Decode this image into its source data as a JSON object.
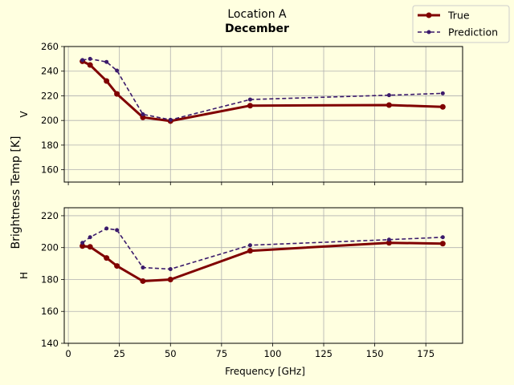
{
  "chart_data": {
    "type": "line",
    "title": "Location A",
    "subtitle": "December",
    "xlabel": "Frequency [GHz]",
    "ylabel": "Brightness Temp [K]",
    "legend": {
      "placement": "top-right",
      "entries": [
        "True",
        "Prediction"
      ]
    },
    "colors": {
      "true": "#800000",
      "prediction": "#3b1a6b",
      "background": "#ffffe0"
    },
    "grid": true,
    "xlim": [
      -2,
      193
    ],
    "xticks": [
      0,
      25,
      50,
      75,
      100,
      125,
      150,
      175
    ],
    "x": [
      6.9,
      10.65,
      18.7,
      23.8,
      36.5,
      50.0,
      89.0,
      157.0,
      183.3
    ],
    "panels": [
      {
        "label": "V",
        "ylim": [
          150,
          260
        ],
        "yticks": [
          160,
          180,
          200,
          220,
          240,
          260
        ],
        "series": [
          {
            "name": "True",
            "style": "solid",
            "values": [
              248,
              245,
              232,
              221.5,
              202.5,
              199.5,
              212,
              212.5,
              211
            ]
          },
          {
            "name": "Prediction",
            "style": "dashed",
            "values": [
              249,
              250,
              247.5,
              240.5,
              205,
              200.5,
              217,
              220.5,
              222
            ]
          }
        ]
      },
      {
        "label": "H",
        "ylim": [
          140,
          225
        ],
        "yticks": [
          140,
          160,
          180,
          200,
          220
        ],
        "series": [
          {
            "name": "True",
            "style": "solid",
            "values": [
              201,
              200.5,
              193.5,
              188.5,
              179,
              180,
              198,
              203,
              202.5
            ]
          },
          {
            "name": "Prediction",
            "style": "dashed",
            "values": [
              203,
              206.5,
              212,
              211,
              187.5,
              186.5,
              201.5,
              205,
              206.5
            ]
          }
        ]
      }
    ]
  }
}
